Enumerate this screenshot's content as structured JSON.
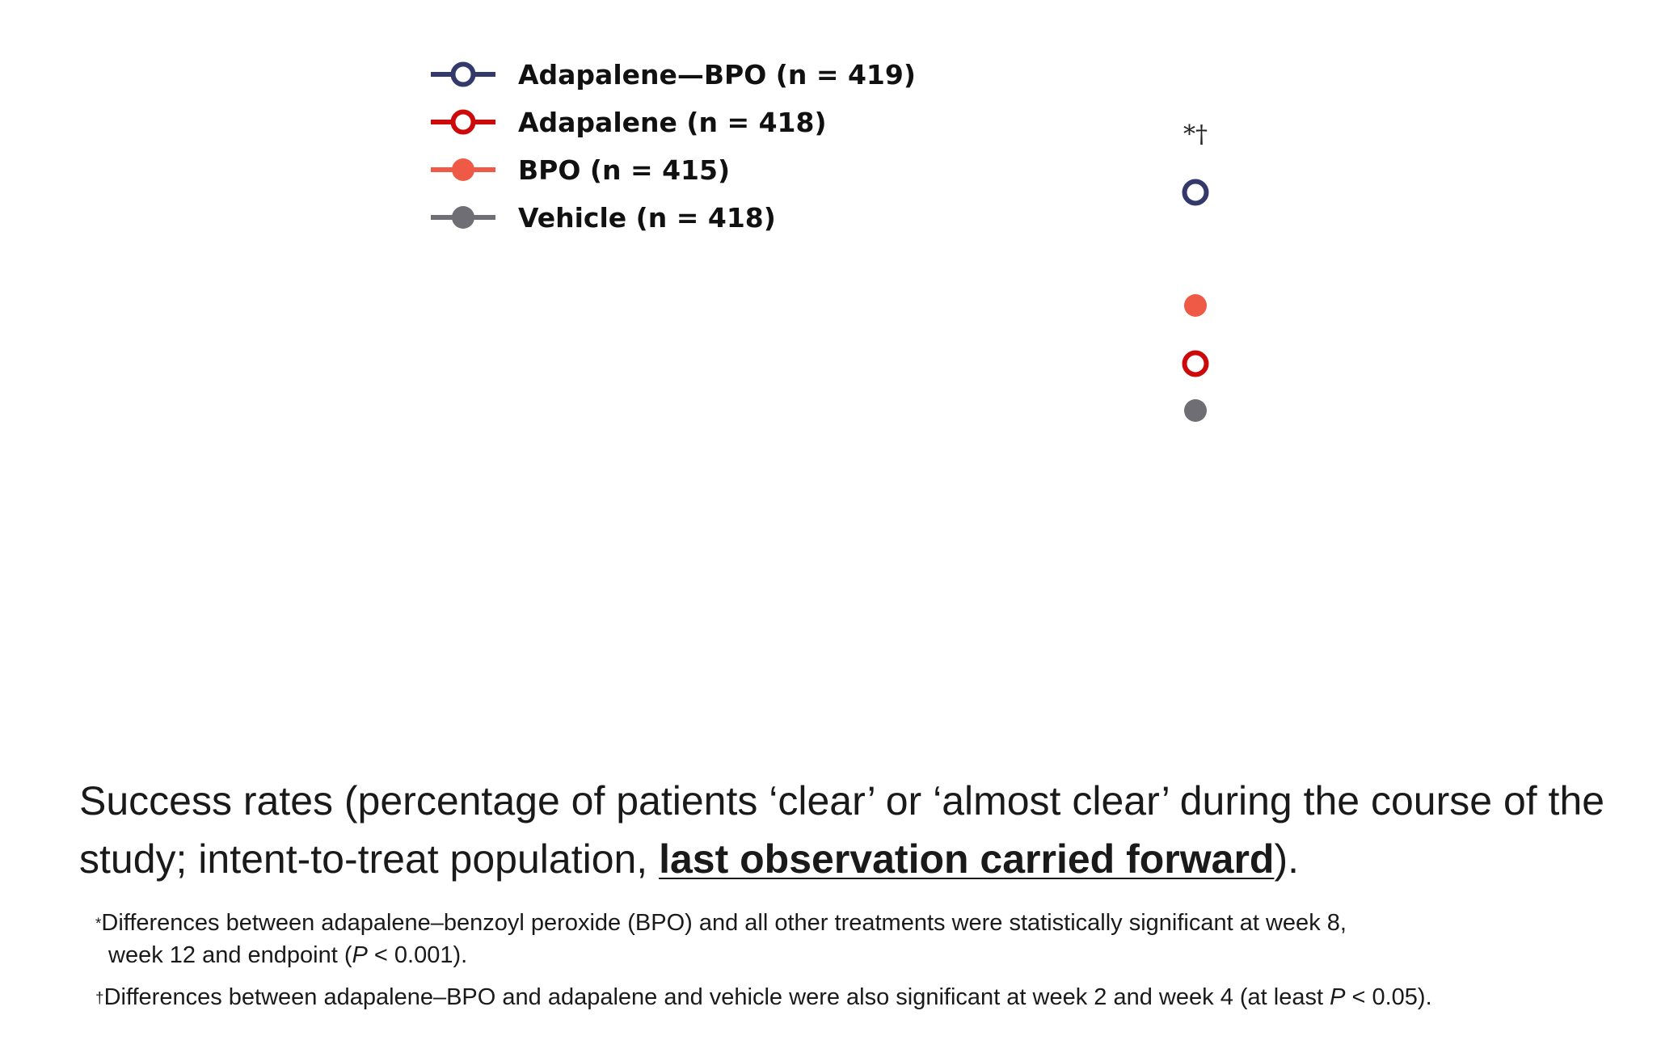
{
  "chart_data": {
    "type": "scatter",
    "title": "",
    "xlabel": "",
    "ylabel": "",
    "series": [
      {
        "name": "Adapalene—BPO (n = 419)",
        "color": "#333a6b",
        "marker": "open-circle",
        "rank": 1
      },
      {
        "name": "Adapalene (n = 418)",
        "color": "#cc0a0a",
        "marker": "open-circle",
        "rank": 3
      },
      {
        "name": "BPO (n = 415)",
        "color": "#ef5a47",
        "marker": "filled-circle",
        "rank": 2
      },
      {
        "name": "Vehicle (n = 418)",
        "color": "#6e6e74",
        "marker": "filled-circle",
        "rank": 4
      }
    ],
    "legend_position": "top-left",
    "grid": false,
    "annotation": "*†"
  },
  "caption": {
    "part1": "Success rates (percentage of patients ‘clear’ or ‘almost clear’ during the course of the study; intent-to-treat population, ",
    "emphasis": "last observation carried forward",
    "part2": ")."
  },
  "footnotes": [
    {
      "mark": "*",
      "line1": "Differences between adapalene–benzoyl peroxide (BPO) and all other treatments were statistically significant at week 8,",
      "line2_pre": "week 12 and endpoint (",
      "italic": "P",
      "line2_post": " < 0.001)."
    },
    {
      "mark": "†",
      "line1_pre": "Differences between adapalene–BPO and adapalene and vehicle were also significant at week 2 and week 4 (at least ",
      "italic": "P",
      "line1_post": " < 0.05)."
    }
  ]
}
